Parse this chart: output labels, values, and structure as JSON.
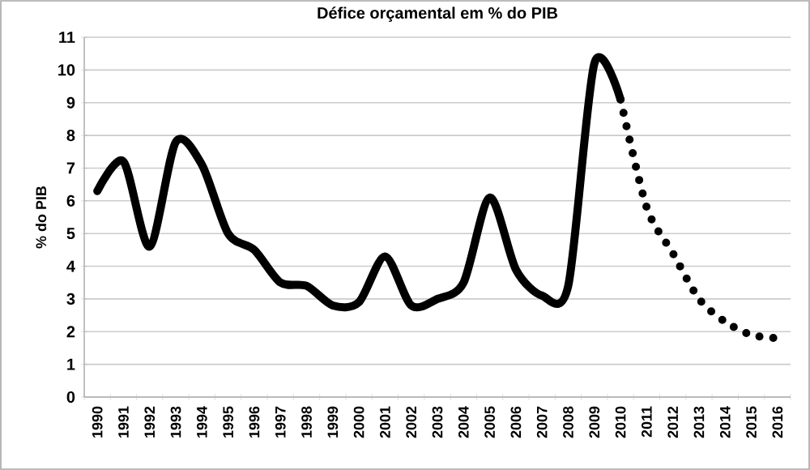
{
  "chart_data": {
    "type": "line",
    "title": "Défice orçamental em % do PIB",
    "ylabel": "% do PIB",
    "categories": [
      "1990",
      "1991",
      "1992",
      "1993",
      "1994",
      "1995",
      "1996",
      "1997",
      "1998",
      "1999",
      "2000",
      "2001",
      "2002",
      "2003",
      "2004",
      "2005",
      "2006",
      "2007",
      "2008",
      "2009",
      "2010",
      "2011",
      "2012",
      "2013",
      "2014",
      "2015",
      "2016"
    ],
    "series": [
      {
        "color": "#000000",
        "line_style": "solid",
        "values": [
          6.3,
          7.2,
          4.6,
          7.8,
          7.1,
          5.0,
          4.5,
          3.5,
          3.4,
          2.8,
          2.9,
          4.3,
          2.8,
          3.0,
          3.5,
          6.1,
          3.9,
          3.1,
          3.4,
          10.2,
          9.1,
          null,
          null,
          null,
          null,
          null,
          null
        ]
      },
      {
        "color": "#000000",
        "line_style": "dotted",
        "values": [
          null,
          null,
          null,
          null,
          null,
          null,
          null,
          null,
          null,
          null,
          null,
          null,
          null,
          null,
          null,
          null,
          null,
          null,
          null,
          null,
          9.1,
          5.8,
          4.4,
          3.0,
          2.3,
          1.9,
          1.8
        ]
      }
    ],
    "ylim": [
      0,
      11
    ],
    "yticks": [
      0,
      1,
      2,
      3,
      4,
      5,
      6,
      7,
      8,
      9,
      10,
      11
    ],
    "grid": "y"
  }
}
